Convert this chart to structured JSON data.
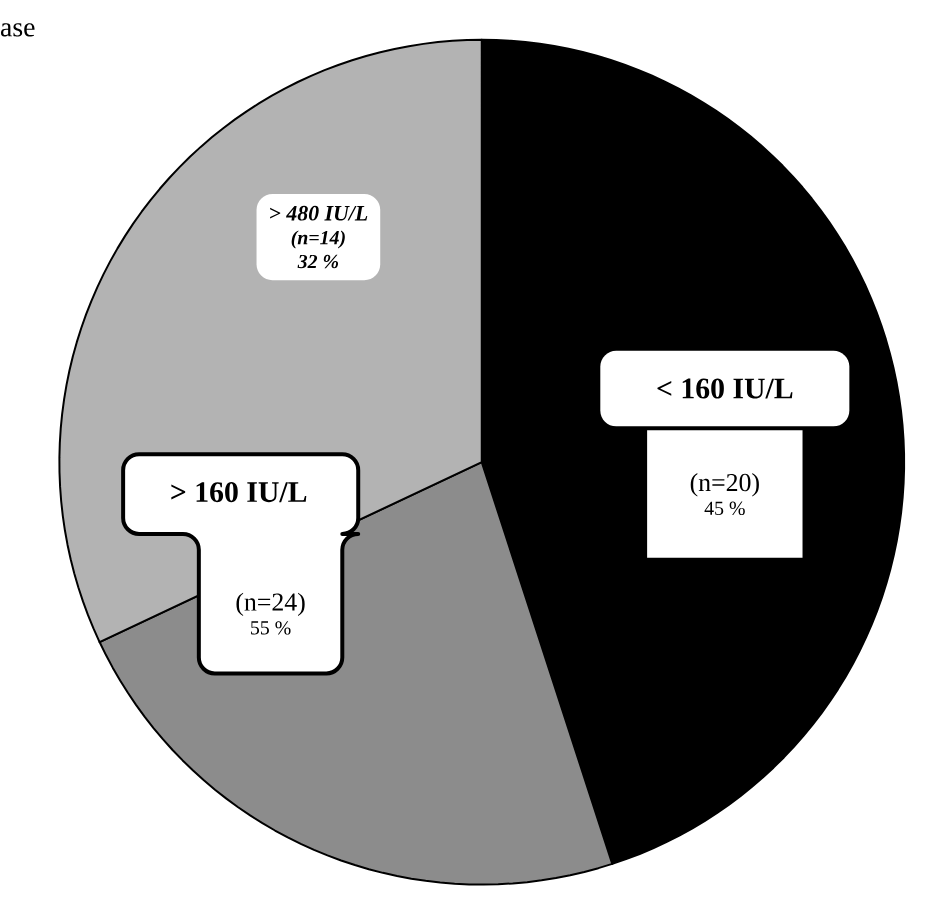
{
  "chart_data": {
    "type": "pie",
    "categories": [
      "< 160 IU/L",
      null,
      "> 480 IU/L"
    ],
    "values": [
      45,
      23,
      32
    ],
    "colors": [
      "#000000",
      "#8c8c8c",
      "#b3b3b3"
    ],
    "value_labels": [
      "45 %",
      null,
      "32 %"
    ],
    "annotations": [
      "(n=20)",
      "(n=14)",
      "> 160 IU/L",
      "(n=24)",
      "55 %",
      "ase"
    ]
  }
}
